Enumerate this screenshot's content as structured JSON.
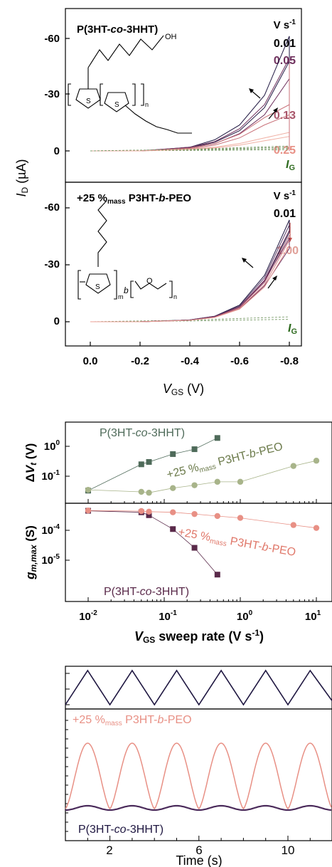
{
  "colors": {
    "axis": "#000000",
    "dark_navy": "#1e1640",
    "plum": "#6e2f5c",
    "mauve": "#8b4a72",
    "salmon": "#e89085",
    "pink_light": "#efb2aa",
    "olive": "#9aa57a",
    "olive_dark": "#5f6b47",
    "slate_green": "#4f6b5a",
    "gate_green": "#2e6b1f",
    "arrow_red": "#c0504d"
  },
  "panel_a": {
    "top": {
      "label": "P(3HT-co-3HHT)",
      "rates_header": "V s-1",
      "rates": [
        "0.01",
        "0.05",
        "0.13",
        "0.25"
      ],
      "ig_label": "IG",
      "oh_label": "OH",
      "n_label": "n"
    },
    "bottom": {
      "label": "+25 %mass P3HT-b-PEO",
      "rates_header": "V s-1",
      "rates": [
        "0.01",
        "1.00"
      ],
      "ig_label": "IG",
      "m_label": "m",
      "b_label": "b",
      "n_label": "n",
      "o_label": "O",
      "s_label": "S"
    },
    "ylabel": "ID (µA)",
    "xlabel": "VGS (V)",
    "yticks": [
      "-60",
      "-30",
      "0"
    ],
    "xticks": [
      "0.0",
      "-0.2",
      "-0.4",
      "-0.6",
      "-0.8"
    ]
  },
  "panel_b": {
    "top_ylabel": "ΔVt (V)",
    "bottom_ylabel": "gm,max (S)",
    "xlabel": "VGS sweep rate (V s-1)",
    "top_yticks": [
      "10⁰",
      "10⁻¹"
    ],
    "bottom_yticks": [
      "10⁻⁴",
      "10⁻⁵"
    ],
    "xticks": [
      "10⁻²",
      "10⁻¹",
      "10⁰",
      "10¹"
    ],
    "series_labels": {
      "copolymer": "P(3HT-co-3HHT)",
      "blend": "+25 %mass P3HT-b-PEO"
    }
  },
  "panel_c": {
    "xlabel": "Time (s)",
    "xticks": [
      "2",
      "6",
      "10"
    ],
    "blend_label": "+25 %mass P3HT-b-PEO",
    "copolymer_label": "P(3HT-co-3HHT)"
  },
  "chart_data": [
    {
      "type": "line",
      "title": "",
      "xlabel": "VGS (V)",
      "ylabel": "ID (µA)",
      "xlim": [
        0.1,
        -0.95
      ],
      "ylim": [
        5,
        -70
      ],
      "series": [
        {
          "name": "0.01",
          "x": [
            0.0,
            -0.2,
            -0.4,
            -0.5,
            -0.6,
            -0.7,
            -0.8
          ],
          "values": [
            0,
            0,
            -2,
            -6,
            -14,
            -30,
            -62
          ]
        },
        {
          "name": "0.05",
          "x": [
            0.0,
            -0.2,
            -0.4,
            -0.5,
            -0.6,
            -0.7,
            -0.8
          ],
          "values": [
            0,
            0,
            -2,
            -5,
            -12,
            -25,
            -50
          ]
        },
        {
          "name": "0.13",
          "x": [
            0.0,
            -0.2,
            -0.4,
            -0.5,
            -0.6,
            -0.7,
            -0.8
          ],
          "values": [
            0,
            0,
            -1.5,
            -4,
            -9,
            -18,
            -25
          ]
        },
        {
          "name": "0.25",
          "x": [
            0.0,
            -0.2,
            -0.4,
            -0.5,
            -0.6,
            -0.7,
            -0.8
          ],
          "values": [
            0,
            0,
            -1,
            -2,
            -4,
            -7,
            -10
          ]
        }
      ]
    },
    {
      "type": "line",
      "title": "",
      "xlabel": "VGS (V)",
      "ylabel": "ID (µA)",
      "xlim": [
        0.1,
        -0.95
      ],
      "ylim": [
        5,
        -70
      ],
      "series": [
        {
          "name": "0.01",
          "x": [
            0.0,
            -0.2,
            -0.4,
            -0.5,
            -0.6,
            -0.7,
            -0.8
          ],
          "values": [
            0,
            0,
            -1,
            -3,
            -9,
            -25,
            -55
          ]
        },
        {
          "name": "1.00",
          "x": [
            0.0,
            -0.2,
            -0.4,
            -0.5,
            -0.6,
            -0.7,
            -0.8
          ],
          "values": [
            0,
            0,
            -1,
            -3,
            -8,
            -22,
            -45
          ]
        }
      ]
    },
    {
      "type": "scatter",
      "title": "",
      "xlabel": "VGS sweep rate (V s-1)",
      "ylabel": "ΔVt (V)",
      "xscale": "log",
      "yscale": "log",
      "series": [
        {
          "name": "P(3HT-co-3HHT)",
          "x": [
            0.01,
            0.05,
            0.063,
            0.13,
            0.25,
            0.5
          ],
          "values": [
            0.033,
            0.25,
            0.3,
            0.55,
            0.8,
            1.9
          ]
        },
        {
          "name": "+25 %mass P3HT-b-PEO",
          "x": [
            0.01,
            0.05,
            0.063,
            0.13,
            0.25,
            0.5,
            1.0,
            5.0,
            10.0
          ],
          "values": [
            0.035,
            0.03,
            0.028,
            0.04,
            0.05,
            0.065,
            0.065,
            0.22,
            0.33
          ]
        }
      ]
    },
    {
      "type": "scatter",
      "title": "",
      "xlabel": "VGS sweep rate (V s-1)",
      "ylabel": "gm,max (S)",
      "xscale": "log",
      "yscale": "log",
      "series": [
        {
          "name": "P(3HT-co-3HHT)",
          "x": [
            0.01,
            0.05,
            0.063,
            0.13,
            0.25,
            0.5
          ],
          "values": [
            0.00045,
            0.0004,
            0.00032,
            0.00011,
            2.6e-05,
            3.3e-06
          ]
        },
        {
          "name": "+25 %mass P3HT-b-PEO",
          "x": [
            0.01,
            0.05,
            0.063,
            0.13,
            0.25,
            0.5,
            1.0,
            5.0,
            10.0
          ],
          "values": [
            0.00046,
            0.00044,
            0.00042,
            0.0004,
            0.00035,
            0.0003,
            0.00026,
            0.00015,
            0.00012
          ]
        }
      ]
    },
    {
      "type": "line",
      "title": "",
      "xlabel": "Time (s)",
      "ylabel": "",
      "xlim": [
        0,
        12
      ],
      "series": [
        {
          "name": "VGS triangle",
          "x": [
            0,
            1,
            2,
            3,
            4,
            5,
            6,
            7,
            8,
            9,
            10,
            11,
            12
          ],
          "values": [
            0,
            1,
            0,
            1,
            0,
            1,
            0,
            1,
            0,
            1,
            0,
            1,
            0.1
          ]
        },
        {
          "name": "+25 %mass P3HT-b-PEO",
          "x": [
            0,
            1,
            2,
            3,
            4,
            5,
            6,
            7,
            8,
            9,
            10,
            11,
            12
          ],
          "values": [
            0,
            1,
            0,
            1,
            0,
            1,
            0,
            1,
            0,
            1,
            0,
            1,
            0.1
          ]
        },
        {
          "name": "P(3HT-co-3HHT)",
          "x": [
            0,
            1,
            2,
            3,
            4,
            5,
            6,
            7,
            8,
            9,
            10,
            11,
            12
          ],
          "values": [
            0,
            0.05,
            0,
            0.05,
            0,
            0.05,
            0,
            0.05,
            0,
            0.05,
            0,
            0.05,
            0
          ]
        }
      ]
    }
  ]
}
